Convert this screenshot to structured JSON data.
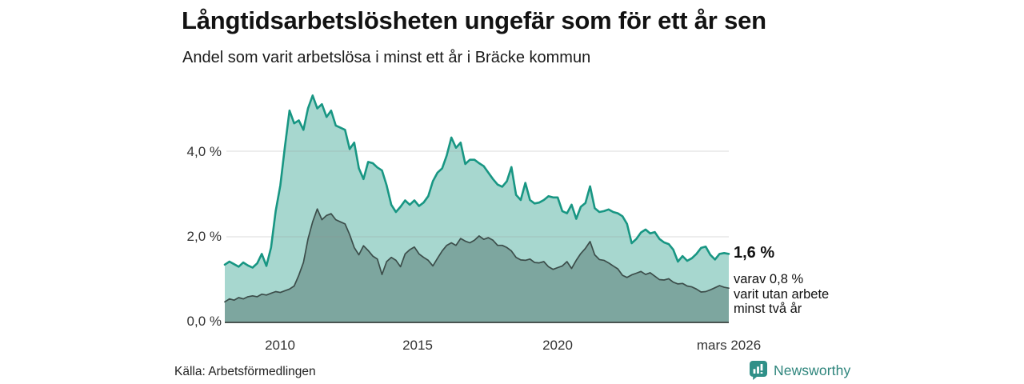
{
  "chart_data": {
    "type": "area",
    "title": "Långtidsarbetslösheten ungefär som för ett år sen",
    "subtitle": "Andel som varit arbetslösa i minst ett år i Bräcke kommun",
    "unit": "%",
    "grid": true,
    "ylim": [
      0,
      5.5
    ],
    "x_start_year": 2008.0,
    "x_step_years": 0.1666667,
    "x_end": "mars 2026",
    "yticks": [
      {
        "value": 0,
        "label": "0,0 %"
      },
      {
        "value": 2,
        "label": "2,0 %"
      },
      {
        "value": 4,
        "label": "4,0 %"
      }
    ],
    "xticks": [
      {
        "t": 2010,
        "label": "2010"
      },
      {
        "t": 2015,
        "label": "2015"
      },
      {
        "t": 2020,
        "label": "2020"
      },
      {
        "t": 2026.17,
        "label": "mars 2026"
      }
    ],
    "end_annotation": {
      "primary": "1,6 %",
      "secondary_lines": [
        "varav 0,8 %",
        "varit utan arbete",
        "minst två år"
      ]
    },
    "source": "Källa: Arbetsförmedlingen",
    "colors": {
      "line_1yr": "#189683",
      "fill_1yr": "#a7d7cf",
      "line_2yr": "#3c4d4a",
      "fill_2yr": "#7da69f",
      "gridline": "#d6d6d6",
      "baseline": "#4a5451",
      "brand_teal": "#2e857c"
    },
    "series": [
      {
        "name": "Andel arbetslösa minst ett år",
        "line_color": "#189683",
        "fill_color": "#a7d7cf",
        "stroke_width": 2.6,
        "last_value": 1.6,
        "values": [
          1.35,
          1.42,
          1.36,
          1.3,
          1.4,
          1.33,
          1.28,
          1.38,
          1.6,
          1.32,
          1.75,
          2.6,
          3.2,
          4.1,
          4.95,
          4.65,
          4.72,
          4.5,
          5.0,
          5.3,
          5.0,
          5.1,
          4.8,
          4.95,
          4.6,
          4.55,
          4.5,
          4.05,
          4.2,
          3.6,
          3.35,
          3.75,
          3.72,
          3.62,
          3.55,
          3.2,
          2.75,
          2.58,
          2.7,
          2.85,
          2.75,
          2.85,
          2.72,
          2.8,
          2.95,
          3.3,
          3.5,
          3.6,
          3.9,
          4.32,
          4.08,
          4.2,
          3.7,
          3.8,
          3.8,
          3.72,
          3.65,
          3.5,
          3.35,
          3.22,
          3.17,
          3.3,
          3.63,
          2.98,
          2.86,
          3.26,
          2.86,
          2.78,
          2.8,
          2.86,
          2.95,
          2.92,
          2.92,
          2.6,
          2.55,
          2.75,
          2.42,
          2.7,
          2.79,
          3.18,
          2.67,
          2.58,
          2.6,
          2.64,
          2.58,
          2.55,
          2.48,
          2.3,
          1.85,
          1.95,
          2.1,
          2.17,
          2.08,
          2.11,
          1.95,
          1.87,
          1.83,
          1.7,
          1.42,
          1.55,
          1.44,
          1.5,
          1.6,
          1.74,
          1.77,
          1.58,
          1.47,
          1.6,
          1.62,
          1.6
        ]
      },
      {
        "name": "Andel arbetslösa minst två år",
        "line_color": "#3c4d4a",
        "fill_color": "#7da69f",
        "stroke_width": 1.7,
        "last_value": 0.8,
        "values": [
          0.48,
          0.55,
          0.52,
          0.58,
          0.55,
          0.6,
          0.62,
          0.6,
          0.66,
          0.64,
          0.68,
          0.72,
          0.7,
          0.74,
          0.78,
          0.85,
          1.1,
          1.4,
          1.95,
          2.35,
          2.65,
          2.4,
          2.5,
          2.54,
          2.4,
          2.35,
          2.3,
          2.05,
          1.75,
          1.58,
          1.79,
          1.68,
          1.55,
          1.48,
          1.12,
          1.42,
          1.52,
          1.45,
          1.3,
          1.6,
          1.7,
          1.76,
          1.6,
          1.52,
          1.45,
          1.32,
          1.5,
          1.67,
          1.8,
          1.86,
          1.8,
          1.96,
          1.9,
          1.86,
          1.92,
          2.02,
          1.94,
          1.98,
          1.92,
          1.8,
          1.8,
          1.75,
          1.67,
          1.52,
          1.46,
          1.45,
          1.48,
          1.4,
          1.39,
          1.42,
          1.3,
          1.24,
          1.28,
          1.32,
          1.42,
          1.26,
          1.45,
          1.61,
          1.73,
          1.89,
          1.58,
          1.47,
          1.45,
          1.39,
          1.32,
          1.25,
          1.1,
          1.05,
          1.11,
          1.15,
          1.19,
          1.12,
          1.16,
          1.08,
          1.0,
          0.99,
          1.02,
          0.94,
          0.9,
          0.91,
          0.85,
          0.83,
          0.78,
          0.71,
          0.72,
          0.76,
          0.81,
          0.86,
          0.82,
          0.8
        ]
      }
    ]
  },
  "footer": {
    "brand": "Newsworthy"
  }
}
